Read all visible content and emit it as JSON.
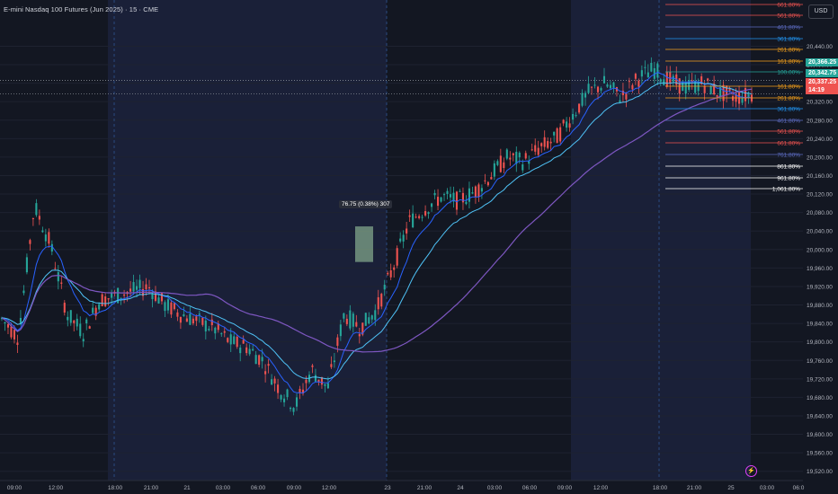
{
  "header": {
    "title": "E-mini Nasdaq 100 Futures (Jun 2025) · 15 · CME"
  },
  "currency": "USD",
  "colors": {
    "background": "#131722",
    "session_shade": "#1a2038",
    "up": "#26a69a",
    "down": "#ef5350",
    "ema_fast": "#2962ff",
    "ema_mid": "#4fc3f7",
    "sma_slow": "#7e57c2"
  },
  "price_badges": [
    {
      "value": "20,366.25",
      "color": "#26a69a"
    },
    {
      "value": "20,342.75",
      "color": "#26a69a"
    },
    {
      "value": "20,337.25",
      "color": "#ef5350"
    },
    {
      "value": "14:19",
      "color": "#ef5350"
    }
  ],
  "measure": {
    "label": "76.75 (0.38%) 307"
  },
  "fib_up": [
    {
      "label": "661.80%",
      "color": "#ef5350"
    },
    {
      "label": "561.80%",
      "color": "#ef5350"
    },
    {
      "label": "461.80%",
      "color": "#5c6bc0"
    },
    {
      "label": "361.80%",
      "color": "#2196f3"
    },
    {
      "label": "261.80%",
      "color": "#f7a21b"
    },
    {
      "label": "161.80%",
      "color": "#f7a21b"
    },
    {
      "label": "100.00%",
      "color": "#26a69a"
    }
  ],
  "fib_down": [
    {
      "label": "161.80%",
      "color": "#f7a21b"
    },
    {
      "label": "261.80%",
      "color": "#f7a21b"
    },
    {
      "label": "361.80%",
      "color": "#2196f3"
    },
    {
      "label": "461.80%",
      "color": "#5c6bc0"
    },
    {
      "label": "561.80%",
      "color": "#ef5350"
    },
    {
      "label": "661.80%",
      "color": "#ef5350"
    },
    {
      "label": "761.80%",
      "color": "#5c6bc0"
    },
    {
      "label": "861.80%",
      "color": "#ffffff"
    },
    {
      "label": "961.80%",
      "color": "#ffffff"
    },
    {
      "label": "1,061.80%",
      "color": "#ffffff"
    }
  ],
  "chart_data": {
    "type": "candlestick",
    "title": "E-mini Nasdaq 100 Futures (Jun 2025) · 15 · CME",
    "ylim": [
      19500,
      20540
    ],
    "y_ticks": [
      19520,
      19560,
      19600,
      19640,
      19680,
      19720,
      19760,
      19800,
      19840,
      19880,
      19920,
      19960,
      20000,
      20040,
      20080,
      20120,
      20160,
      20200,
      20240,
      20280,
      20320,
      20360,
      20400,
      20440
    ],
    "y_tick_labels": [
      "19,520.00",
      "19,560.00",
      "19,600.00",
      "19,640.00",
      "19,680.00",
      "19,720.00",
      "19,760.00",
      "19,800.00",
      "19,840.00",
      "19,880.00",
      "19,920.00",
      "19,960.00",
      "20,000.00",
      "20,040.00",
      "20,080.00",
      "20,120.00",
      "20,160.00",
      "20,200.00",
      "20,240.00",
      "20,280.00",
      "20,320.00",
      "20,360.00",
      "20,400.00",
      "20,440.00"
    ],
    "x_ticks": [
      "09:00",
      "12:00",
      "18:00",
      "21:00",
      "21",
      "03:00",
      "06:00",
      "09:00",
      "12:00",
      "23",
      "21:00",
      "24",
      "03:00",
      "06:00",
      "09:00",
      "12:00",
      "18:00",
      "21:00",
      "25",
      "03:00",
      "06:0"
    ],
    "sessions_shaded": [
      [
        0,
        3
      ],
      [
        9,
        12
      ],
      [
        16,
        19
      ]
    ],
    "session_dividers": [
      3.9,
      14.9
    ],
    "anchors": [
      [
        0,
        19850
      ],
      [
        1,
        19810
      ],
      [
        2,
        20095
      ],
      [
        3,
        20010
      ],
      [
        4,
        19860
      ],
      [
        5,
        19820
      ],
      [
        6,
        19890
      ],
      [
        7,
        19900
      ],
      [
        8,
        19910
      ],
      [
        9,
        19920
      ],
      [
        10,
        19880
      ],
      [
        11,
        19860
      ],
      [
        12,
        19845
      ],
      [
        13,
        19830
      ],
      [
        14,
        19800
      ],
      [
        15,
        19790
      ],
      [
        16,
        19760
      ],
      [
        17,
        19700
      ],
      [
        18,
        19660
      ],
      [
        19,
        19740
      ],
      [
        20,
        19700
      ],
      [
        21,
        19860
      ],
      [
        22,
        19830
      ],
      [
        23,
        19870
      ],
      [
        24,
        19960
      ],
      [
        25,
        20060
      ],
      [
        26,
        20090
      ],
      [
        27,
        20115
      ],
      [
        28,
        20105
      ],
      [
        29,
        20125
      ],
      [
        30,
        20160
      ],
      [
        31,
        20200
      ],
      [
        32,
        20190
      ],
      [
        33,
        20220
      ],
      [
        34,
        20240
      ],
      [
        35,
        20290
      ],
      [
        36,
        20340
      ],
      [
        37,
        20360
      ],
      [
        38,
        20330
      ],
      [
        39,
        20370
      ],
      [
        40,
        20390
      ],
      [
        41,
        20365
      ],
      [
        42,
        20350
      ],
      [
        43,
        20360
      ],
      [
        44,
        20340
      ],
      [
        45,
        20330
      ],
      [
        46,
        20335
      ]
    ],
    "bars": 47,
    "ema_fast_last": 20345,
    "ema_mid_last": 20335,
    "sma_slow_last": 20310
  }
}
